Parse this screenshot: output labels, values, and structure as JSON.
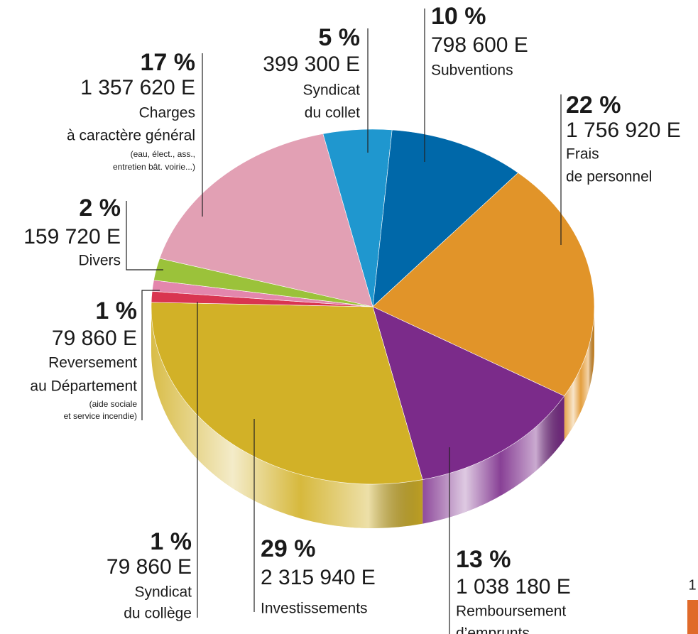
{
  "chart_data": {
    "type": "pie",
    "categories": [
      [
        "Syndicat",
        "du collet"
      ],
      [
        "Subventions"
      ],
      [
        "Frais",
        "de personnel"
      ],
      [
        "Remboursement",
        "d’emprunts"
      ],
      [
        "Investissements"
      ],
      [
        "Syndicat",
        "du collège"
      ],
      [
        "Reversement",
        "au Département"
      ],
      [
        "Divers"
      ],
      [
        "Charges",
        "à caractère général"
      ]
    ],
    "notes": [
      null,
      null,
      null,
      null,
      null,
      null,
      [
        "(aide sociale",
        "et service incendie)"
      ],
      null,
      [
        "(eau, élect., ass.,",
        "entretien bât. voirie...)"
      ]
    ],
    "values": [
      5,
      10,
      22,
      13,
      29,
      1,
      1,
      2,
      17
    ],
    "value_labels": [
      "5 %",
      "10 %",
      "22 %",
      "13 %",
      "29 %",
      "1 %",
      "1 %",
      "2 %",
      "17 %"
    ],
    "amounts": [
      399300,
      798600,
      1756920,
      1038180,
      2315940,
      79860,
      79860,
      159720,
      1357620
    ],
    "amount_labels": [
      "399 300 E",
      "798 600 E",
      "1 756 920 E",
      "1 038 180 E",
      "2 315 940 E",
      "79 860 E",
      "79 860 E",
      "159 720 E",
      "1 357 620 E"
    ],
    "colors": [
      "#1f97cf",
      "#0068a9",
      "#e19429",
      "#7b2b8a",
      "#d2b127",
      "#d93550",
      "#e386ac",
      "#9bc23a",
      "#e2a0b4"
    ]
  },
  "page_number": "1"
}
